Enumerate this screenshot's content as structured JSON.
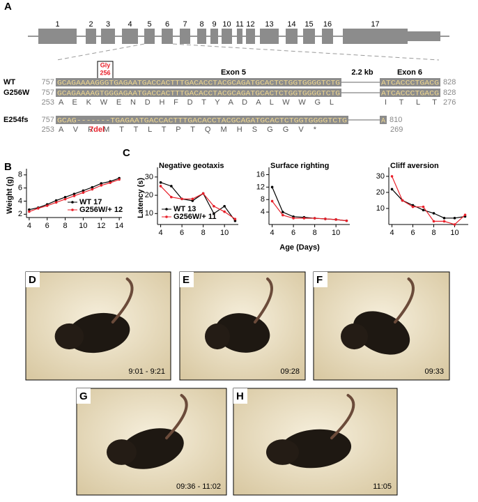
{
  "panels": {
    "a": "A",
    "b": "B",
    "c": "C"
  },
  "gene": {
    "exons": [
      "1",
      "2",
      "3",
      "4",
      "5",
      "6",
      "7",
      "8",
      "9",
      "10",
      "11",
      "12",
      "13",
      "14",
      "15",
      "16",
      "17"
    ],
    "gly": "Gly",
    "gly_pos": "256",
    "exon5": "Exon 5",
    "gap": "2.2 kb",
    "exon6": "Exon 6",
    "rows": [
      {
        "name": "WT",
        "start": "757",
        "seq": "GCAGAAAAGGGTGAGAATGACCACTTTGACACCTACGCAGATGCACTCTGGTGGGGTCTG",
        "seq2": "ATCACCCTGACG",
        "end": "828"
      },
      {
        "name": "G256W",
        "start": "757",
        "seq": "GCAGAAAAGTGGGAGAATGACCACTTTGACACCTACGCAGATGCACTCTGGTGGGGTCTG",
        "seq2": "ATCACCCTGACG",
        "end": "828"
      },
      {
        "name": "E254fs",
        "start": "757",
        "seq": "GCAG-------TGAGAATGACCACTTTGACACCTACGCAGATGCACTCTGGTGGGGTCTG",
        "seq2": "A",
        "end": "810"
      }
    ],
    "aa": [
      {
        "start": "253",
        "seq": "A  E  K  W  E  N  D  H  F  D  T  Y  A  D  A  L  W  W  G  L",
        "seq2": "I  T  L  T",
        "end": "276"
      },
      {
        "start": "253",
        "seq": "A           V  R  M  T  T  L  T  P  T  Q  M  H  S  G  G  V  *",
        "end": "269",
        "note": "7del"
      }
    ]
  },
  "chart_data": [
    {
      "type": "line",
      "ylabel": "Weight (g)",
      "x": [
        4,
        5,
        6,
        7,
        8,
        9,
        10,
        11,
        12,
        13,
        14
      ],
      "xlim": [
        3.7,
        14.3
      ],
      "xticks": [
        4,
        6,
        8,
        10,
        12,
        14
      ],
      "ylim": [
        1.5,
        8.3
      ],
      "yticks": [
        2,
        4,
        6,
        8
      ],
      "legend": "lower right",
      "series": [
        {
          "name": "WT 17",
          "color": "#000000",
          "values": [
            2.7,
            3.0,
            3.5,
            4.1,
            4.6,
            5.1,
            5.6,
            6.1,
            6.7,
            7.0,
            7.5
          ]
        },
        {
          "name": "G256W/+ 12",
          "color": "#e8202a",
          "values": [
            2.4,
            2.9,
            3.3,
            3.8,
            4.3,
            4.8,
            5.3,
            5.8,
            6.4,
            6.8,
            7.3
          ]
        }
      ]
    },
    {
      "type": "line",
      "title": "Negative geotaxis",
      "ylabel": "Latency (s)",
      "x": [
        4,
        5,
        6,
        7,
        8,
        9,
        10,
        11
      ],
      "xlim": [
        3.7,
        11.3
      ],
      "xticks": [
        4,
        6,
        8,
        10
      ],
      "ylim": [
        4,
        33
      ],
      "yticks": [
        10,
        20,
        30
      ],
      "legend": "lower left",
      "series": [
        {
          "name": "WT 13",
          "color": "#000000",
          "values": [
            27,
            25,
            18,
            17,
            21,
            10,
            14,
            6
          ]
        },
        {
          "name": "G256W/+ 11",
          "color": "#e8202a",
          "values": [
            25,
            19,
            18,
            18,
            21,
            14,
            11,
            7
          ]
        }
      ]
    },
    {
      "type": "line",
      "title": "Surface righting",
      "x": [
        4,
        5,
        6,
        7,
        8,
        9,
        10,
        11
      ],
      "xlim": [
        3.7,
        11.3
      ],
      "xticks": [
        4,
        6,
        8,
        10
      ],
      "ylim": [
        0,
        17
      ],
      "yticks": [
        4,
        8,
        12,
        16
      ],
      "series": [
        {
          "name": "WT 13",
          "color": "#000000",
          "values": [
            12,
            4,
            2.5,
            2.3,
            2,
            1.8,
            1.6,
            1.2
          ]
        },
        {
          "name": "G256W/+ 11",
          "color": "#e8202a",
          "values": [
            7.5,
            3,
            2,
            2,
            2,
            1.8,
            1.6,
            1.2
          ]
        }
      ]
    },
    {
      "type": "line",
      "title": "Cliff aversion",
      "x": [
        4,
        5,
        6,
        7,
        8,
        9,
        10,
        11
      ],
      "xlim": [
        3.7,
        11.3
      ],
      "xticks": [
        4,
        6,
        8,
        10
      ],
      "ylim": [
        0,
        33
      ],
      "yticks": [
        10,
        20,
        30
      ],
      "series": [
        {
          "name": "WT 13",
          "color": "#000000",
          "values": [
            22,
            15,
            12,
            9,
            7,
            4,
            4,
            5
          ]
        },
        {
          "name": "G256W/+ 11",
          "color": "#e8202a",
          "values": [
            30,
            15,
            11,
            11,
            2,
            2,
            0,
            6
          ]
        }
      ]
    }
  ],
  "c_xlabel": "Age (Days)",
  "photos": [
    {
      "label": "D",
      "time": "9:01 - 9:21"
    },
    {
      "label": "E",
      "time": "09:28"
    },
    {
      "label": "F",
      "time": "09:33"
    },
    {
      "label": "G",
      "time": "09:36 - 11:02"
    },
    {
      "label": "H",
      "time": "11:05"
    }
  ]
}
